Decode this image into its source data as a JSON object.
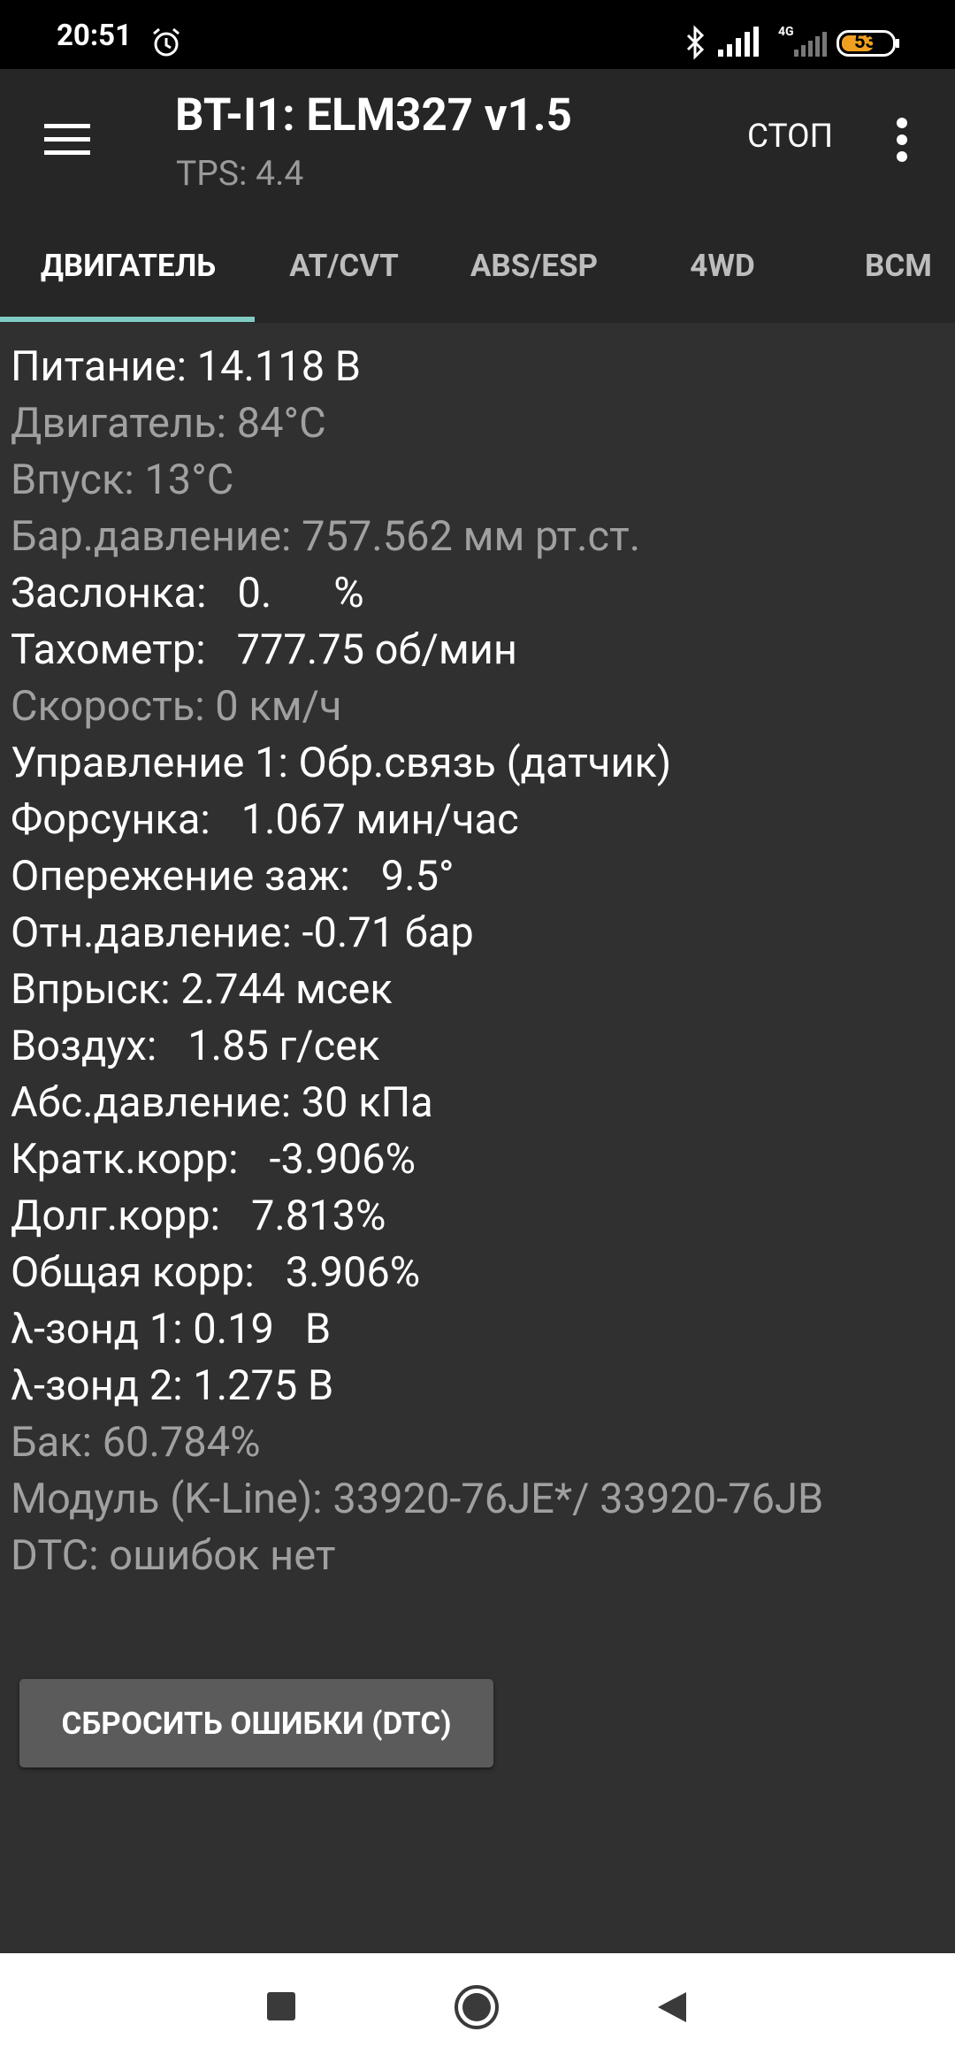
{
  "status_bar": {
    "time": "20:51",
    "network": "4G",
    "battery": "53"
  },
  "app_bar": {
    "title": "BT-I1: ELM327 v1.5",
    "subtitle": "TPS: 4.4",
    "action": "СТОП"
  },
  "tabs": [
    "ДВИГАТЕЛЬ",
    "AT/CVT",
    "ABS/ESP",
    "4WD",
    "BCM"
  ],
  "lines": [
    {
      "text": "Питание: 14.118 В",
      "color": "#ffffff"
    },
    {
      "text": "Двигатель: 84°C",
      "color": "#a0a0a0"
    },
    {
      "text": "Впуск: 13°C",
      "color": "#a0a0a0"
    },
    {
      "text": "Бар.давление: 757.562 мм рт.ст.",
      "color": "#a0a0a0"
    },
    {
      "text": "Заслонка:   0.      %",
      "color": "#ffffff"
    },
    {
      "text": "Тахометр:   777.75 об/мин",
      "color": "#ffffff"
    },
    {
      "text": "Скорость: 0 км/ч",
      "color": "#a0a0a0"
    },
    {
      "text": "Управление 1: Обр.связь (датчик)",
      "color": "#ffffff"
    },
    {
      "text": "Форсунка:   1.067 мин/час",
      "color": "#ffffff"
    },
    {
      "text": "Опережение заж:   9.5°",
      "color": "#ffffff"
    },
    {
      "text": "Отн.давление: -0.71 бар",
      "color": "#ffffff"
    },
    {
      "text": "Впрыск: 2.744 мсек",
      "color": "#ffffff"
    },
    {
      "text": "Воздух:   1.85 г/сек",
      "color": "#ffffff"
    },
    {
      "text": "Абс.давление: 30 кПа",
      "color": "#ffffff"
    },
    {
      "text": "Кратк.корр:   -3.906%",
      "color": "#ffffff"
    },
    {
      "text": "Долг.корр:   7.813%",
      "color": "#ffffff"
    },
    {
      "text": "Общая корр:   3.906%",
      "color": "#ffffff"
    },
    {
      "text": "λ-зонд 1: 0.19   В",
      "color": "#ffffff"
    },
    {
      "text": "λ-зонд 2: 1.275 В",
      "color": "#ffffff"
    },
    {
      "text": "Бак: 60.784%",
      "color": "#a0a0a0"
    },
    {
      "text": "Модуль (K-Line): 33920-76JE*/ 33920-76JB",
      "color": "#a0a0a0"
    },
    {
      "text": "DTC: ошибок нет",
      "color": "#a0a0a0"
    }
  ],
  "button": "СБРОСИТЬ ОШИБКИ (DTC)"
}
